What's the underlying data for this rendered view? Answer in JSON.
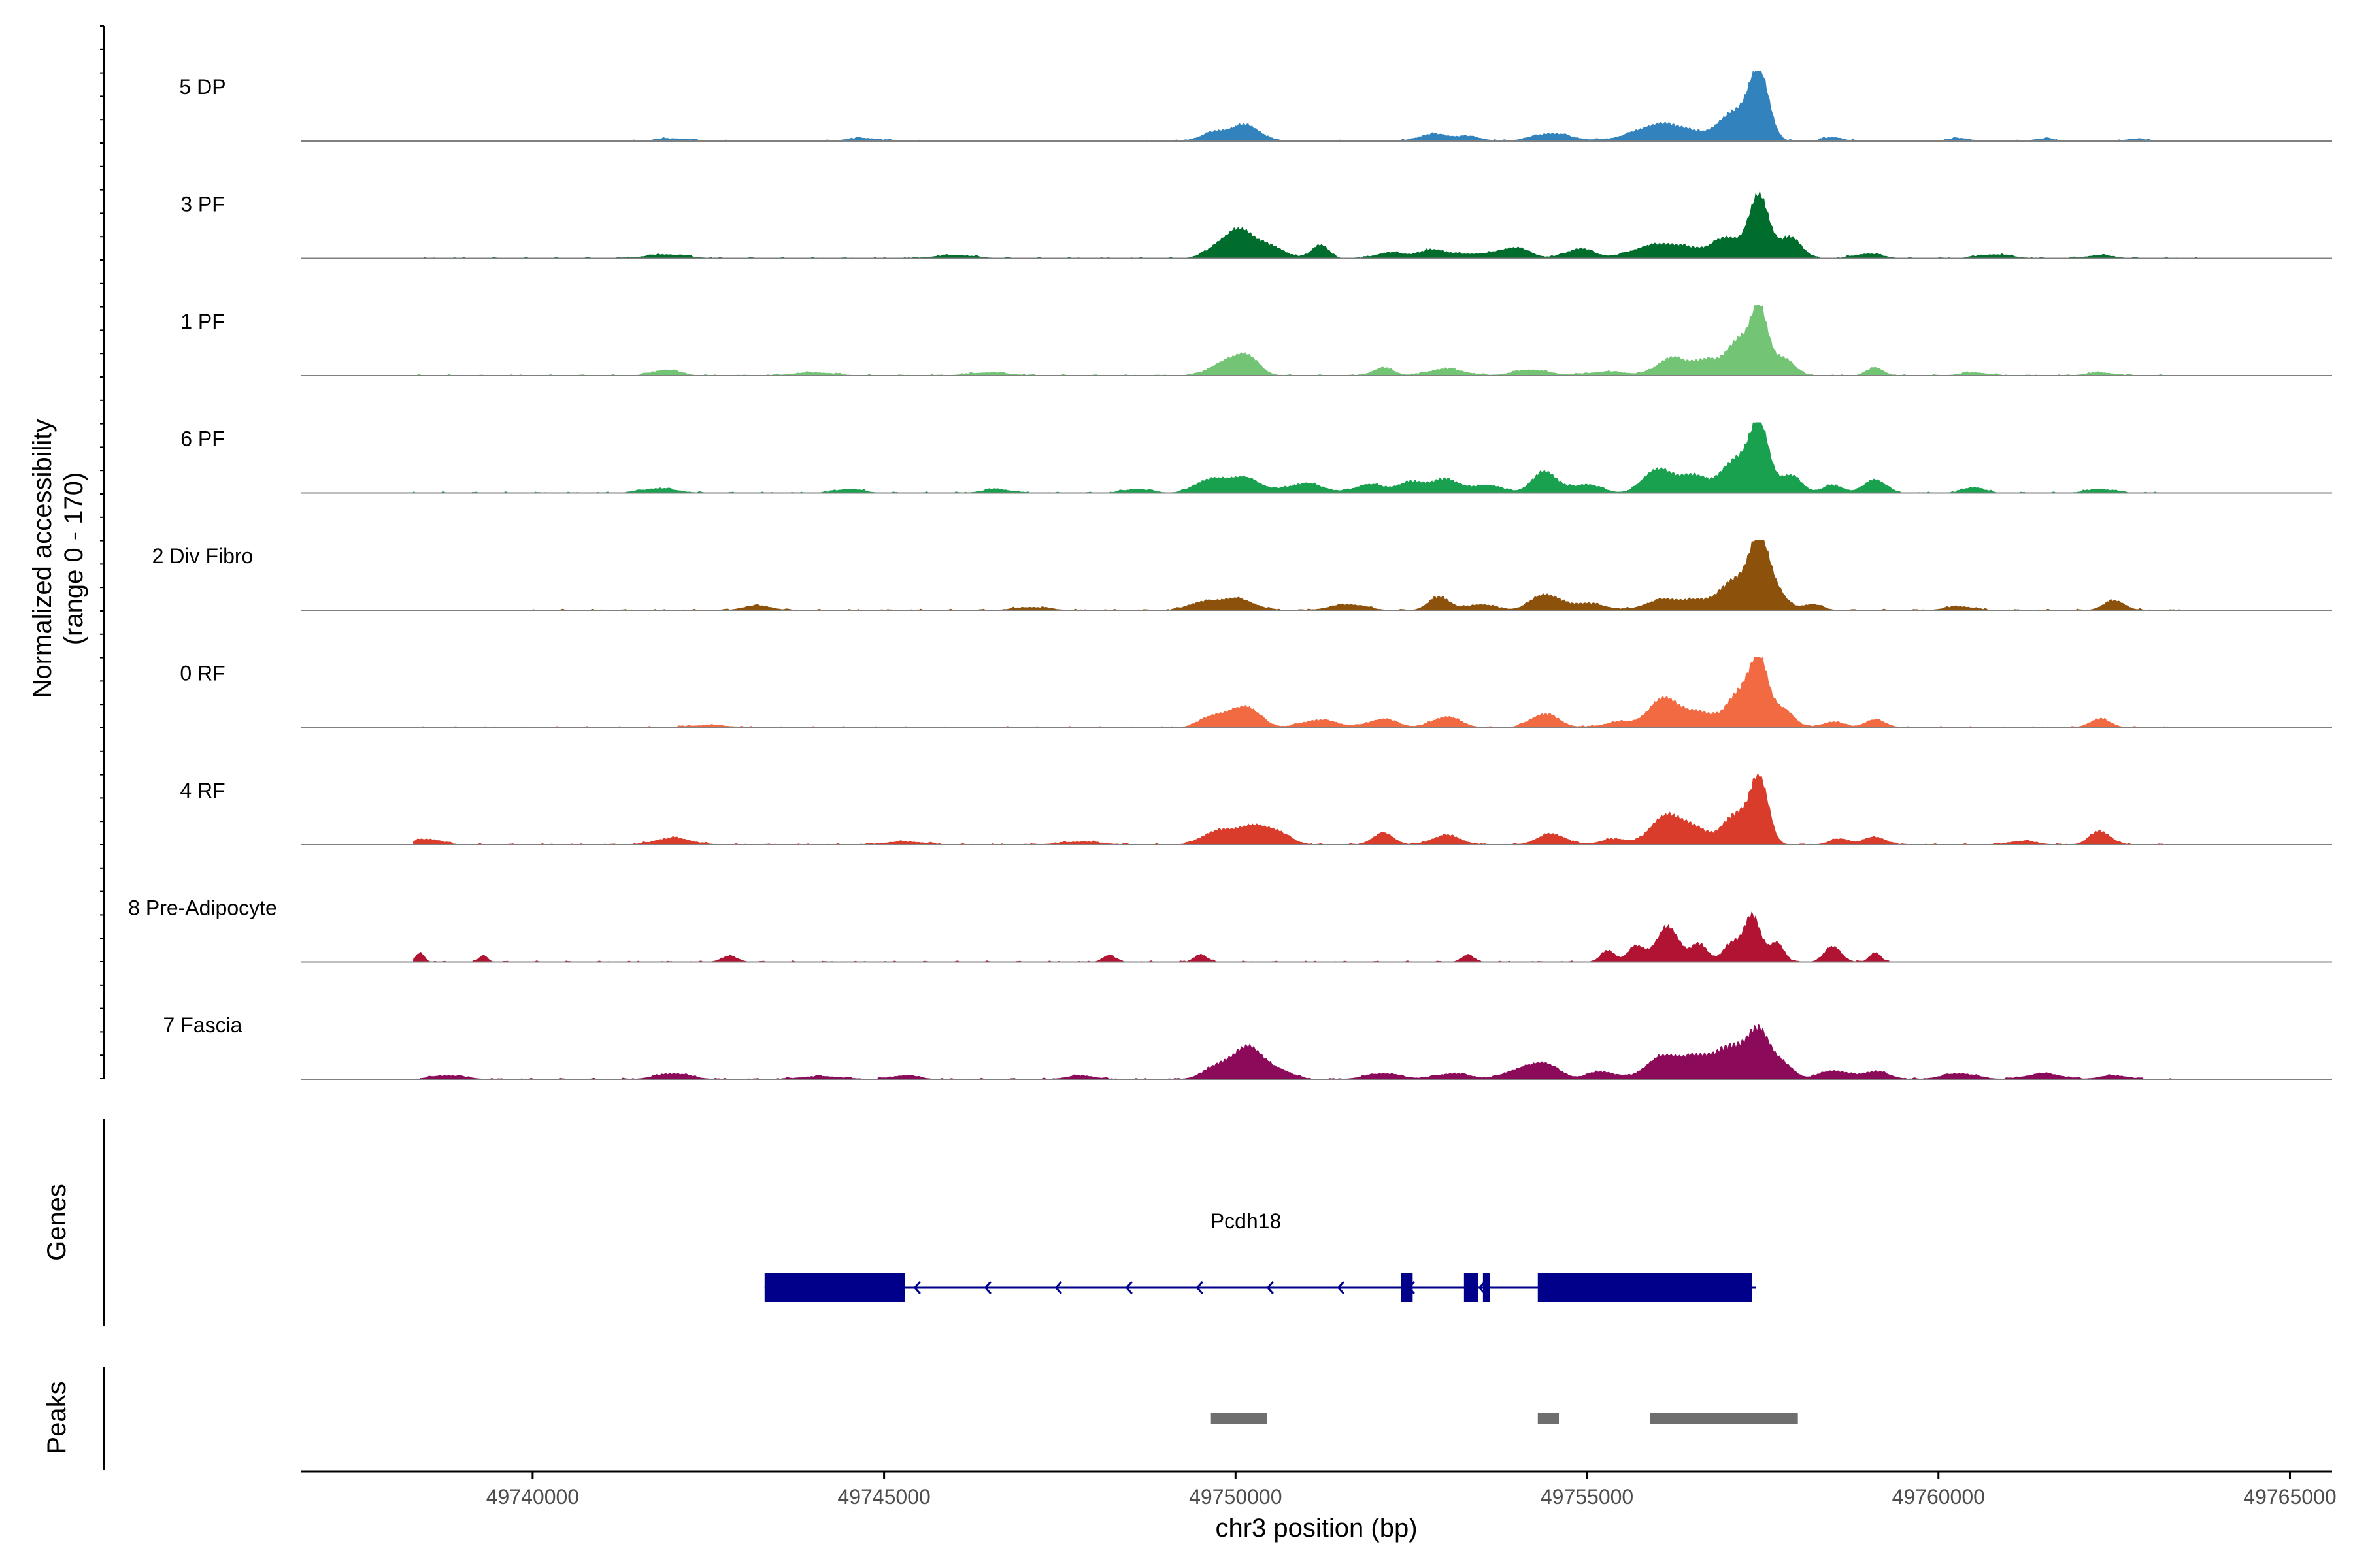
{
  "chart_data": {
    "type": "area",
    "title": "",
    "xlabel": "chr3 position (bp)",
    "ylabel_line1": "Normalized accessibility",
    "ylabel_line2": "(range 0 - 170)",
    "ylim": [
      0,
      170
    ],
    "xlim": [
      49736700,
      49765600
    ],
    "x_ticks": [
      49740000,
      49745000,
      49750000,
      49755000,
      49760000,
      49765000
    ],
    "x_tick_labels": [
      "49740000",
      "49745000",
      "49750000",
      "49755000",
      "49760000",
      "49765000"
    ],
    "tracks": [
      {
        "name": "5 DP",
        "color": "#3182BD",
        "extent": [
          49739200,
          49763500
        ],
        "peaks": [
          [
            49757450,
            170,
            140
          ],
          [
            49757100,
            70,
            220
          ],
          [
            49756100,
            45,
            400
          ],
          [
            49750150,
            40,
            200
          ],
          [
            49749700,
            22,
            200
          ],
          [
            49754500,
            20,
            280
          ],
          [
            49752800,
            18,
            200
          ],
          [
            49753300,
            12,
            200
          ],
          [
            49744700,
            8,
            250
          ],
          [
            49742000,
            7,
            250
          ],
          [
            49758500,
            10,
            150
          ],
          [
            49760300,
            8,
            150
          ],
          [
            49761500,
            7,
            150
          ],
          [
            49762800,
            6,
            150
          ]
        ]
      },
      {
        "name": "3 PF",
        "color": "#006D2C",
        "extent": [
          49738300,
          49763700
        ],
        "peaks": [
          [
            49757450,
            160,
            140
          ],
          [
            49757900,
            55,
            150
          ],
          [
            49750100,
            60,
            180
          ],
          [
            49749800,
            35,
            200
          ],
          [
            49750500,
            30,
            200
          ],
          [
            49751200,
            35,
            120
          ],
          [
            49752800,
            20,
            200
          ],
          [
            49753500,
            12,
            400
          ],
          [
            49754000,
            22,
            200
          ],
          [
            49754900,
            25,
            200
          ],
          [
            49755900,
            28,
            300
          ],
          [
            49756400,
            25,
            300
          ],
          [
            49757000,
            50,
            200
          ],
          [
            49752200,
            15,
            200
          ],
          [
            49741900,
            10,
            300
          ],
          [
            49746000,
            8,
            300
          ],
          [
            49759000,
            12,
            200
          ],
          [
            49760800,
            10,
            250
          ],
          [
            49762300,
            8,
            200
          ]
        ]
      },
      {
        "name": "1 PF",
        "color": "#74C476",
        "extent": [
          49738300,
          49763500
        ],
        "peaks": [
          [
            49757450,
            170,
            120
          ],
          [
            49757150,
            85,
            160
          ],
          [
            49757800,
            45,
            150
          ],
          [
            49756200,
            45,
            200
          ],
          [
            49756700,
            40,
            200
          ],
          [
            49750150,
            50,
            180
          ],
          [
            49749800,
            28,
            200
          ],
          [
            49752100,
            20,
            150
          ],
          [
            49753000,
            18,
            250
          ],
          [
            49754200,
            15,
            250
          ],
          [
            49755300,
            10,
            300
          ],
          [
            49759100,
            20,
            120
          ],
          [
            49741900,
            15,
            200
          ],
          [
            49744000,
            8,
            300
          ],
          [
            49746500,
            8,
            300
          ],
          [
            49760500,
            8,
            200
          ],
          [
            49762300,
            8,
            200
          ]
        ]
      },
      {
        "name": "6 PF",
        "color": "#1AA150",
        "extent": [
          49738300,
          49763400
        ],
        "peaks": [
          [
            49757450,
            170,
            140
          ],
          [
            49757100,
            80,
            200
          ],
          [
            49757900,
            45,
            150
          ],
          [
            49756000,
            60,
            200
          ],
          [
            49756500,
            45,
            200
          ],
          [
            49754400,
            55,
            180
          ],
          [
            49750100,
            40,
            250
          ],
          [
            49749600,
            30,
            200
          ],
          [
            49751000,
            25,
            250
          ],
          [
            49751900,
            22,
            200
          ],
          [
            49752500,
            28,
            200
          ],
          [
            49753000,
            35,
            200
          ],
          [
            49753600,
            20,
            200
          ],
          [
            49755000,
            22,
            200
          ],
          [
            49758500,
            20,
            150
          ],
          [
            49759100,
            35,
            150
          ],
          [
            49760500,
            15,
            150
          ],
          [
            49741800,
            12,
            250
          ],
          [
            49744500,
            10,
            200
          ],
          [
            49746600,
            10,
            200
          ],
          [
            49748600,
            10,
            200
          ],
          [
            49762300,
            10,
            200
          ]
        ]
      },
      {
        "name": "2 Div Fibro",
        "color": "#8C510A",
        "extent": [
          49740000,
          49763500
        ],
        "peaks": [
          [
            49757450,
            170,
            140
          ],
          [
            49757100,
            75,
            200
          ],
          [
            49757700,
            40,
            150
          ],
          [
            49756100,
            28,
            250
          ],
          [
            49756600,
            22,
            200
          ],
          [
            49750000,
            30,
            250
          ],
          [
            49749500,
            18,
            200
          ],
          [
            49751600,
            15,
            250
          ],
          [
            49752900,
            35,
            150
          ],
          [
            49753500,
            15,
            200
          ],
          [
            49754400,
            40,
            200
          ],
          [
            49755000,
            18,
            250
          ],
          [
            49758200,
            15,
            150
          ],
          [
            49743200,
            12,
            200
          ],
          [
            49747100,
            8,
            250
          ],
          [
            49760300,
            10,
            200
          ],
          [
            49762500,
            25,
            150
          ]
        ]
      },
      {
        "name": "0 RF",
        "color": "#F16A41",
        "extent": [
          49738300,
          49763500
        ],
        "peaks": [
          [
            49757450,
            170,
            130
          ],
          [
            49757150,
            85,
            170
          ],
          [
            49757800,
            45,
            150
          ],
          [
            49756100,
            75,
            200
          ],
          [
            49756600,
            40,
            200
          ],
          [
            49750150,
            52,
            200
          ],
          [
            49749700,
            30,
            200
          ],
          [
            49751200,
            20,
            250
          ],
          [
            49752100,
            22,
            200
          ],
          [
            49753000,
            28,
            200
          ],
          [
            49754400,
            35,
            200
          ],
          [
            49755500,
            15,
            250
          ],
          [
            49758500,
            15,
            150
          ],
          [
            49759100,
            20,
            150
          ],
          [
            49762300,
            22,
            150
          ],
          [
            49742500,
            6,
            300
          ]
        ]
      },
      {
        "name": "4 RF",
        "color": "#D93C2A",
        "extent": [
          49738300,
          49763500
        ],
        "peaks": [
          [
            49757450,
            170,
            130
          ],
          [
            49757100,
            75,
            180
          ],
          [
            49756100,
            70,
            200
          ],
          [
            49756500,
            45,
            200
          ],
          [
            49750200,
            45,
            250
          ],
          [
            49749700,
            30,
            200
          ],
          [
            49750600,
            25,
            200
          ],
          [
            49752100,
            30,
            150
          ],
          [
            49753000,
            25,
            200
          ],
          [
            49754500,
            28,
            200
          ],
          [
            49755400,
            15,
            200
          ],
          [
            49758600,
            15,
            150
          ],
          [
            49759100,
            20,
            150
          ],
          [
            49738500,
            15,
            200
          ],
          [
            49742000,
            18,
            250
          ],
          [
            49762300,
            35,
            150
          ],
          [
            49745300,
            8,
            300
          ],
          [
            49747800,
            8,
            300
          ],
          [
            49761200,
            10,
            200
          ]
        ]
      },
      {
        "name": "8 Pre-Adipocyte",
        "color": "#B01432",
        "extent": [
          49738300,
          49759300
        ],
        "peaks": [
          [
            49757350,
            120,
            120
          ],
          [
            49757050,
            45,
            120
          ],
          [
            49757700,
            50,
            100
          ],
          [
            49756150,
            90,
            160
          ],
          [
            49756600,
            45,
            120
          ],
          [
            49755700,
            40,
            120
          ],
          [
            49755300,
            30,
            100
          ],
          [
            49758500,
            40,
            120
          ],
          [
            49759100,
            25,
            80
          ],
          [
            49738400,
            25,
            60
          ],
          [
            49739300,
            18,
            60
          ],
          [
            49742800,
            15,
            120
          ],
          [
            49748200,
            18,
            90
          ],
          [
            49749500,
            20,
            90
          ],
          [
            49753300,
            18,
            90
          ]
        ]
      },
      {
        "name": "7 Fascia",
        "color": "#8C0A5A",
        "extent": [
          49738400,
          49763300
        ],
        "peaks": [
          [
            49757450,
            120,
            160
          ],
          [
            49757050,
            80,
            200
          ],
          [
            49756100,
            60,
            250
          ],
          [
            49756600,
            50,
            200
          ],
          [
            49757800,
            35,
            150
          ],
          [
            49750200,
            75,
            180
          ],
          [
            49749800,
            40,
            220
          ],
          [
            49750600,
            25,
            200
          ],
          [
            49754400,
            40,
            200
          ],
          [
            49754000,
            22,
            200
          ],
          [
            49755200,
            20,
            200
          ],
          [
            49752100,
            15,
            250
          ],
          [
            49753100,
            15,
            250
          ],
          [
            49758500,
            22,
            200
          ],
          [
            49759100,
            20,
            200
          ],
          [
            49760300,
            15,
            250
          ],
          [
            49761500,
            15,
            250
          ],
          [
            49742000,
            15,
            250
          ],
          [
            49738800,
            10,
            250
          ],
          [
            49745300,
            10,
            200
          ],
          [
            49744100,
            8,
            300
          ],
          [
            49747800,
            10,
            200
          ],
          [
            49762500,
            10,
            200
          ]
        ]
      }
    ],
    "genes": [
      {
        "name": "Pcdh18",
        "strand": "-",
        "color": "#00008B",
        "start": 49743300,
        "end": 49757400,
        "exons": [
          [
            49743300,
            49745300
          ],
          [
            49752350,
            49752520
          ],
          [
            49753250,
            49753450
          ],
          [
            49753520,
            49753620
          ],
          [
            49754300,
            49757350
          ]
        ]
      }
    ],
    "peak_regions": [
      [
        49749650,
        49750450
      ],
      [
        49754300,
        49754600
      ],
      [
        49755900,
        49758000
      ]
    ],
    "panel_labels": {
      "genes": "Genes",
      "peaks": "Peaks"
    },
    "colors": {
      "baseline": "#808080",
      "peak_bar": "#6E6E6E",
      "axis": "#000000"
    }
  }
}
